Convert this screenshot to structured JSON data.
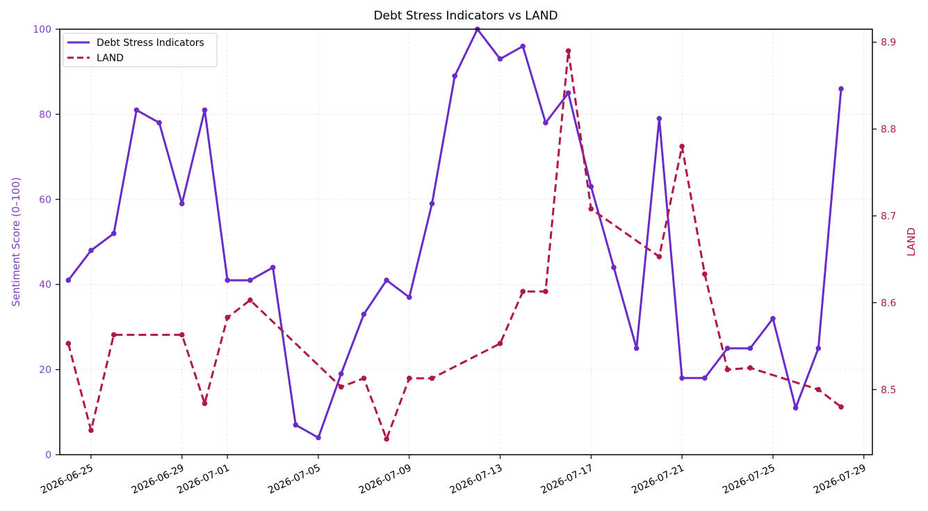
{
  "chart_data": {
    "type": "line",
    "title": "Debt Stress Indicators vs LAND",
    "ylabel_left": "Sentiment Score (0–100)",
    "ylabel_right": "LAND",
    "xlabel": "",
    "ylim_left": [
      0,
      100
    ],
    "ylim_right": [
      8.425,
      8.915
    ],
    "xlim": [
      "2026-06-23T15:00",
      "2026-07-29T09:00"
    ],
    "legend": "top-left",
    "grid": true,
    "left_ticks": [
      0,
      20,
      40,
      60,
      80,
      100
    ],
    "left_tick_labels": [
      "0",
      "20",
      "40",
      "60",
      "80",
      "100"
    ],
    "right_ticks": [
      8.5,
      8.6,
      8.7,
      8.8,
      8.9
    ],
    "right_tick_labels": [
      "8.5",
      "8.6",
      "8.7",
      "8.8",
      "8.9"
    ],
    "x_ticks": [
      "2026-06-25",
      "2026-06-29",
      "2026-07-01",
      "2026-07-05",
      "2026-07-09",
      "2026-07-13",
      "2026-07-17",
      "2026-07-21",
      "2026-07-25",
      "2026-07-29"
    ],
    "colors": {
      "left_axis": "#7b3fbf",
      "right_axis": "#b0184a"
    },
    "series": [
      {
        "name": "Debt Stress Indicators",
        "axis": "left",
        "color": "#6a2cc8",
        "style": "solid",
        "x": [
          "2026-06-24",
          "2026-06-25",
          "2026-06-26",
          "2026-06-27",
          "2026-06-28",
          "2026-06-29",
          "2026-06-30",
          "2026-07-01",
          "2026-07-02",
          "2026-07-03",
          "2026-07-04",
          "2026-07-05",
          "2026-07-06",
          "2026-07-07",
          "2026-07-08",
          "2026-07-09",
          "2026-07-10",
          "2026-07-11",
          "2026-07-12",
          "2026-07-13",
          "2026-07-14",
          "2026-07-15",
          "2026-07-16",
          "2026-07-17",
          "2026-07-18",
          "2026-07-19",
          "2026-07-20",
          "2026-07-21",
          "2026-07-22",
          "2026-07-23",
          "2026-07-24",
          "2026-07-25",
          "2026-07-26",
          "2026-07-27",
          "2026-07-28"
        ],
        "values": [
          41,
          48,
          52,
          81,
          78,
          59,
          81,
          41,
          41,
          44,
          7,
          4,
          19,
          33,
          41,
          37,
          59,
          89,
          100,
          93,
          96,
          78,
          85,
          63,
          44,
          25,
          79,
          18,
          18,
          25,
          25,
          32,
          11,
          25,
          86
        ]
      },
      {
        "name": "LAND",
        "axis": "right",
        "color": "#b0184a",
        "style": "dashed",
        "x": [
          "2026-06-24",
          "2026-06-25",
          "2026-06-26",
          "2026-06-29",
          "2026-06-30",
          "2026-07-01",
          "2026-07-02",
          "2026-07-06",
          "2026-07-07",
          "2026-07-08",
          "2026-07-09",
          "2026-07-10",
          "2026-07-13",
          "2026-07-14",
          "2026-07-15",
          "2026-07-16",
          "2026-07-17",
          "2026-07-20",
          "2026-07-21",
          "2026-07-22",
          "2026-07-23",
          "2026-07-24",
          "2026-07-27",
          "2026-07-28"
        ],
        "values": [
          8.553,
          8.453,
          8.563,
          8.563,
          8.484,
          8.583,
          8.603,
          8.503,
          8.513,
          8.443,
          8.513,
          8.513,
          8.553,
          8.613,
          8.613,
          8.89,
          8.708,
          8.653,
          8.78,
          8.633,
          8.523,
          8.525,
          8.5,
          8.48
        ]
      }
    ]
  }
}
